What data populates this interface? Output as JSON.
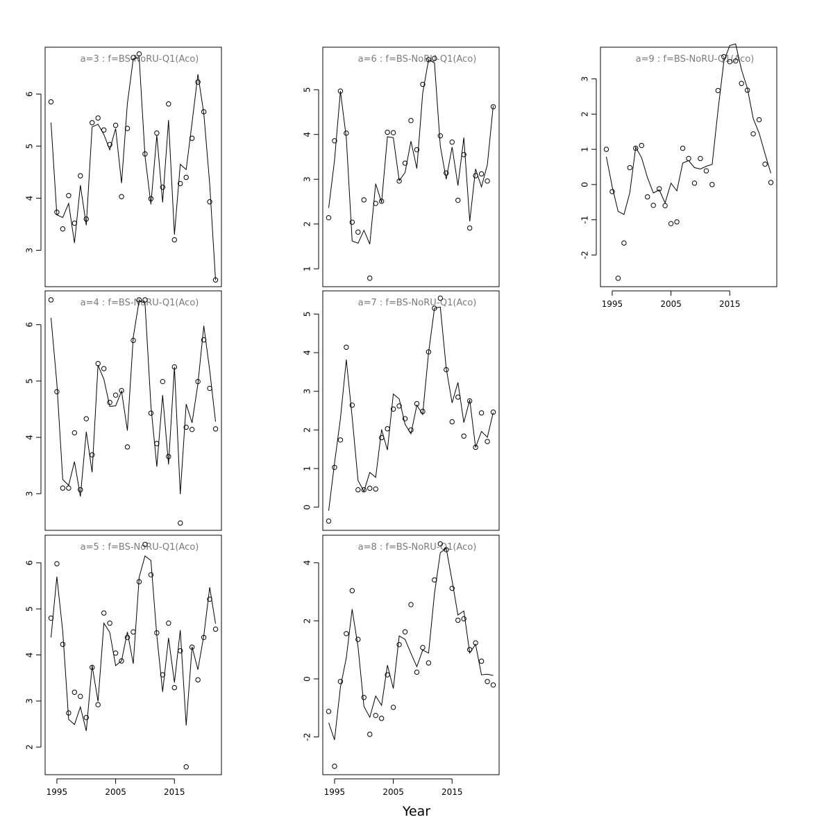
{
  "figure": {
    "xlabel": "Year"
  },
  "chart_data": [
    {
      "type": "line",
      "panel": 1,
      "title": "a=3  :  f=BS-NoRU-Q1(Aco)",
      "x_ticks": [
        1995,
        2005,
        2015
      ],
      "y_ticks": [
        3,
        4,
        5,
        6
      ],
      "xlim": [
        1993,
        2023
      ],
      "ylim": [
        2.3,
        6.9
      ],
      "show_x_tick_labels": false,
      "x_start": 1994,
      "observed": [
        5.85,
        3.73,
        3.41,
        4.05,
        3.52,
        4.43,
        3.6,
        5.45,
        5.54,
        5.31,
        5.03,
        5.4,
        4.03,
        5.34,
        6.7,
        6.77,
        4.85,
        3.99,
        5.25,
        4.21,
        5.81,
        3.2,
        4.28,
        4.4,
        5.15,
        6.23,
        5.66,
        3.93,
        2.43
      ],
      "fitted": [
        5.45,
        3.68,
        3.63,
        3.9,
        3.14,
        4.25,
        3.48,
        5.37,
        5.42,
        5.22,
        4.93,
        5.34,
        4.29,
        5.82,
        6.68,
        6.7,
        4.81,
        3.88,
        5.21,
        3.92,
        5.5,
        3.3,
        4.65,
        4.55,
        5.45,
        6.38,
        5.63,
        4.27,
        2.43
      ]
    },
    {
      "type": "line",
      "panel": 2,
      "title": "a=4  :  f=BS-NoRU-Q1(Aco)",
      "x_ticks": [
        1995,
        2005,
        2015
      ],
      "y_ticks": [
        3,
        4,
        5,
        6
      ],
      "xlim": [
        1993,
        2023
      ],
      "ylim": [
        2.35,
        6.6
      ],
      "show_x_tick_labels": false,
      "x_start": 1994,
      "observed": [
        6.44,
        4.81,
        3.1,
        3.1,
        4.08,
        3.07,
        4.33,
        3.69,
        5.31,
        5.22,
        4.62,
        4.75,
        4.83,
        3.83,
        5.72,
        6.44,
        6.44,
        4.43,
        3.89,
        4.99,
        3.66,
        5.25,
        2.48,
        4.18,
        4.14,
        4.99,
        5.73,
        4.87,
        4.15
      ],
      "fitted": [
        6.12,
        4.96,
        3.25,
        3.15,
        3.57,
        2.95,
        4.1,
        3.38,
        5.28,
        5.03,
        4.55,
        4.56,
        4.82,
        4.12,
        5.78,
        6.43,
        6.38,
        4.56,
        3.48,
        4.75,
        3.52,
        5.25,
        2.99,
        4.59,
        4.26,
        4.95,
        5.98,
        5.19,
        4.28
      ]
    },
    {
      "type": "line",
      "panel": 3,
      "title": "a=5  :  f=BS-NoRU-Q1(Aco)",
      "x_ticks": [
        1995,
        2005,
        2015
      ],
      "y_ticks": [
        2,
        3,
        4,
        5,
        6
      ],
      "xlim": [
        1993,
        2023
      ],
      "ylim": [
        1.4,
        6.6
      ],
      "show_x_tick_labels": true,
      "x_start": 1994,
      "observed": [
        4.8,
        5.98,
        4.23,
        2.74,
        3.19,
        3.1,
        2.64,
        3.73,
        2.92,
        4.91,
        4.69,
        4.04,
        3.87,
        4.38,
        4.5,
        5.59,
        6.4,
        5.74,
        4.48,
        3.57,
        4.69,
        3.29,
        4.09,
        1.57,
        4.17,
        3.46,
        4.38,
        5.21,
        4.56
      ],
      "fitted": [
        4.38,
        5.7,
        4.51,
        2.6,
        2.49,
        2.87,
        2.35,
        3.77,
        2.99,
        4.69,
        4.49,
        3.77,
        3.87,
        4.5,
        3.81,
        5.69,
        6.15,
        6.05,
        4.42,
        3.2,
        4.37,
        3.4,
        4.54,
        2.47,
        4.18,
        3.68,
        4.42,
        5.47,
        4.68
      ]
    },
    {
      "type": "line",
      "panel": 4,
      "title": "a=6  :  f=BS-NoRU-Q1(Aco)",
      "x_ticks": [
        1995,
        2005,
        2015
      ],
      "y_ticks": [
        1,
        2,
        3,
        4,
        5
      ],
      "xlim": [
        1993,
        2023
      ],
      "ylim": [
        0.6,
        5.95
      ],
      "show_x_tick_labels": false,
      "x_start": 1994,
      "observed": [
        2.14,
        3.86,
        4.97,
        4.03,
        2.04,
        1.82,
        2.54,
        0.79,
        2.46,
        2.51,
        4.05,
        4.04,
        2.96,
        3.36,
        4.31,
        3.66,
        5.12,
        5.67,
        5.7,
        3.97,
        3.14,
        3.83,
        2.53,
        3.55,
        1.91,
        3.08,
        3.12,
        2.96,
        4.62
      ],
      "fitted": [
        2.36,
        3.42,
        4.97,
        3.92,
        1.62,
        1.57,
        1.86,
        1.55,
        2.9,
        2.48,
        3.95,
        3.93,
        2.97,
        3.15,
        3.85,
        3.24,
        4.92,
        5.67,
        5.6,
        3.74,
        3.0,
        3.72,
        2.86,
        3.93,
        2.06,
        3.23,
        2.83,
        3.33,
        4.64
      ]
    },
    {
      "type": "line",
      "panel": 5,
      "title": "a=7  :  f=BS-NoRU-Q1(Aco)",
      "x_ticks": [
        1995,
        2005,
        2015
      ],
      "y_ticks": [
        0,
        1,
        2,
        3,
        4,
        5
      ],
      "xlim": [
        1993,
        2023
      ],
      "ylim": [
        -0.6,
        5.6
      ],
      "show_x_tick_labels": false,
      "x_start": 1994,
      "observed": [
        -0.36,
        1.03,
        1.74,
        4.14,
        2.64,
        0.45,
        0.45,
        0.49,
        0.47,
        1.8,
        2.03,
        2.54,
        2.62,
        2.29,
        2.0,
        2.68,
        2.48,
        4.02,
        5.15,
        5.41,
        3.56,
        2.21,
        2.85,
        1.84,
        2.75,
        1.55,
        2.44,
        1.7,
        2.46
      ],
      "fitted": [
        -0.09,
        1.14,
        2.29,
        3.82,
        2.33,
        0.69,
        0.41,
        0.9,
        0.77,
        2.01,
        1.48,
        2.93,
        2.8,
        2.15,
        1.9,
        2.64,
        2.4,
        4.0,
        5.15,
        5.18,
        3.6,
        2.7,
        3.23,
        2.19,
        2.78,
        1.55,
        1.96,
        1.81,
        2.45
      ]
    },
    {
      "type": "line",
      "panel": 6,
      "title": "a=8  :  f=BS-NoRU-Q1(Aco)",
      "x_ticks": [
        1995,
        2005,
        2015
      ],
      "y_ticks": [
        -2,
        0,
        2,
        4
      ],
      "xlim": [
        1993,
        2023
      ],
      "ylim": [
        -3.3,
        4.95
      ],
      "show_x_tick_labels": true,
      "x_start": 1994,
      "observed": [
        -1.12,
        -3.01,
        -0.09,
        1.56,
        3.04,
        1.36,
        -0.64,
        -1.91,
        -1.26,
        -1.36,
        0.14,
        -0.98,
        1.18,
        1.62,
        2.56,
        0.23,
        1.08,
        0.55,
        3.41,
        4.65,
        4.45,
        3.12,
        2.02,
        2.07,
        1.01,
        1.24,
        0.61,
        -0.09,
        -0.21
      ],
      "fitted": [
        -1.51,
        -2.1,
        -0.29,
        0.73,
        2.4,
        1.1,
        -0.95,
        -1.32,
        -0.59,
        -0.91,
        0.47,
        -0.33,
        1.48,
        1.36,
        0.88,
        0.42,
        0.99,
        0.89,
        2.94,
        4.35,
        4.5,
        3.38,
        2.2,
        2.34,
        0.89,
        1.19,
        0.14,
        0.16,
        0.12
      ]
    },
    {
      "type": "line",
      "panel": 7,
      "title": "a=9  :  f=BS-NoRU-Q1(Aco)",
      "x_ticks": [
        1995,
        2005,
        2015
      ],
      "y_ticks": [
        -2,
        -1,
        0,
        1,
        2,
        3
      ],
      "xlim": [
        1993,
        2023
      ],
      "ylim": [
        -2.9,
        3.9
      ],
      "show_x_tick_labels": true,
      "x_start": 1994,
      "observed": [
        1.0,
        -0.2,
        -2.66,
        -1.66,
        0.48,
        1.03,
        1.11,
        -0.35,
        -0.59,
        -0.12,
        -0.6,
        -1.11,
        -1.06,
        1.03,
        0.74,
        0.04,
        0.74,
        0.39,
        0.0,
        2.67,
        3.63,
        3.49,
        3.51,
        2.87,
        2.68,
        1.44,
        1.84,
        0.58,
        0.06
      ],
      "fitted": [
        0.79,
        -0.06,
        -0.76,
        -0.85,
        -0.23,
        1.06,
        0.76,
        0.2,
        -0.24,
        -0.15,
        -0.52,
        0.04,
        -0.18,
        0.61,
        0.68,
        0.48,
        0.44,
        0.52,
        0.57,
        2.1,
        3.5,
        3.95,
        3.99,
        3.26,
        2.73,
        1.87,
        1.46,
        0.87,
        0.32
      ]
    }
  ]
}
